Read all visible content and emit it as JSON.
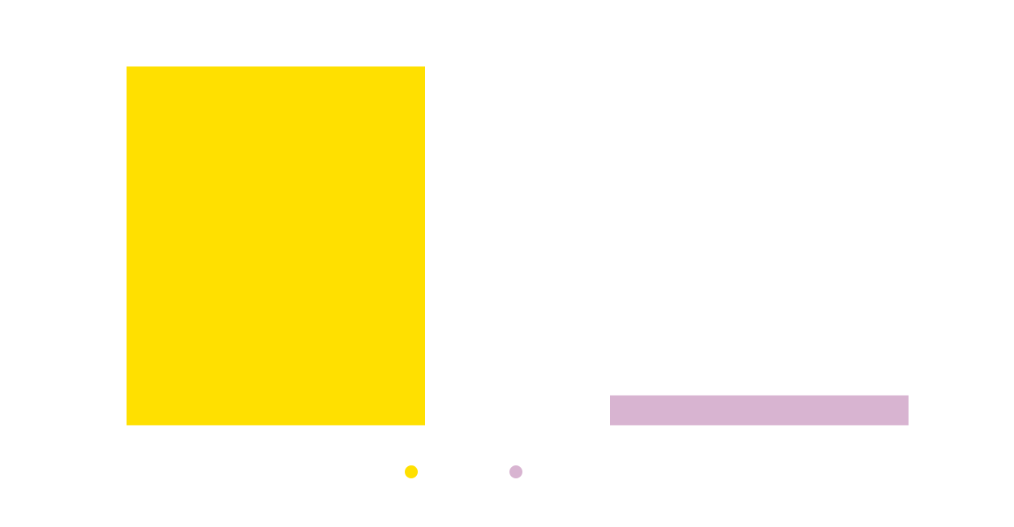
{
  "chart_data": {
    "type": "bar",
    "categories": [
      "",
      ""
    ],
    "series": [
      {
        "values": [
          12,
          1
        ],
        "colors": [
          "#FFE000",
          "#D8B4D1"
        ]
      }
    ],
    "title": "",
    "xlabel": "",
    "ylabel": "",
    "ylim": [
      0,
      13
    ],
    "grid": false,
    "legend": {
      "position": "bottom-center",
      "entries": [
        {
          "label": "",
          "color": "#FFE000"
        },
        {
          "label": "",
          "color": "#D8B4D1"
        }
      ]
    }
  }
}
